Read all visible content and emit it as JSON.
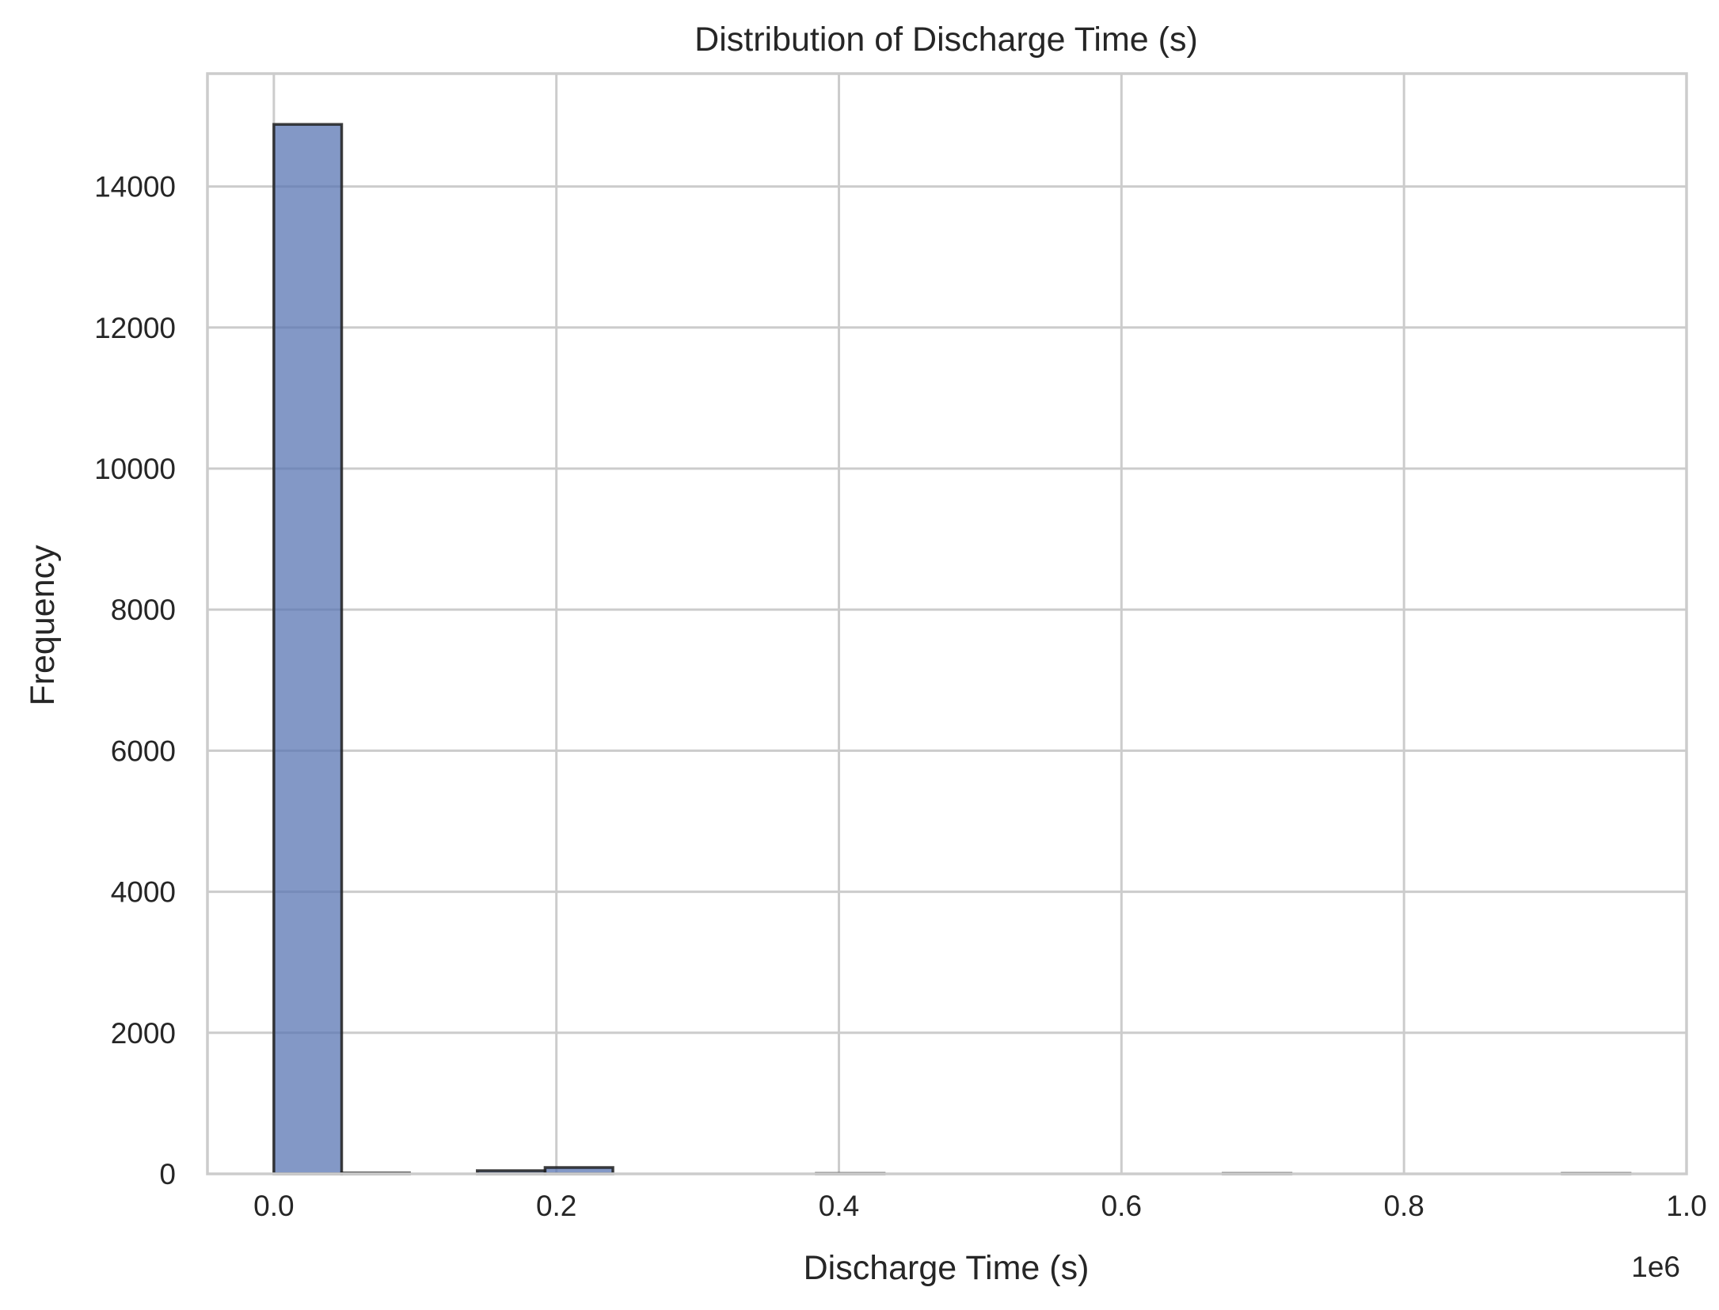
{
  "chart_data": {
    "type": "bar",
    "title": "Distribution of Discharge Time (s)",
    "xlabel": "Discharge Time (s)",
    "ylabel": "Frequency",
    "x_offset_label": "1e6",
    "x_ticks": [
      0.0,
      0.2,
      0.4,
      0.6,
      0.8,
      1.0
    ],
    "x_tick_labels": [
      "0.0",
      "0.2",
      "0.4",
      "0.6",
      "0.8",
      "1.0"
    ],
    "y_ticks": [
      0,
      2000,
      4000,
      6000,
      8000,
      10000,
      12000,
      14000
    ],
    "y_tick_labels": [
      "0",
      "2000",
      "4000",
      "6000",
      "8000",
      "10000",
      "12000",
      "14000"
    ],
    "xlim": [
      -0.047,
      1.0
    ],
    "ylim": [
      0,
      15600
    ],
    "grid": true,
    "bins": [
      {
        "x0": 0.0,
        "x1": 0.048,
        "count": 14880
      },
      {
        "x0": 0.048,
        "x1": 0.096,
        "count": 12
      },
      {
        "x0": 0.096,
        "x1": 0.144,
        "count": 0
      },
      {
        "x0": 0.144,
        "x1": 0.192,
        "count": 45
      },
      {
        "x0": 0.192,
        "x1": 0.24,
        "count": 90
      },
      {
        "x0": 0.24,
        "x1": 0.288,
        "count": 0
      },
      {
        "x0": 0.288,
        "x1": 0.336,
        "count": 0
      },
      {
        "x0": 0.336,
        "x1": 0.384,
        "count": 0
      },
      {
        "x0": 0.384,
        "x1": 0.432,
        "count": 6
      },
      {
        "x0": 0.432,
        "x1": 0.48,
        "count": 0
      },
      {
        "x0": 0.48,
        "x1": 0.528,
        "count": 0
      },
      {
        "x0": 0.528,
        "x1": 0.576,
        "count": 0
      },
      {
        "x0": 0.576,
        "x1": 0.624,
        "count": 0
      },
      {
        "x0": 0.624,
        "x1": 0.672,
        "count": 0
      },
      {
        "x0": 0.672,
        "x1": 0.72,
        "count": 6
      },
      {
        "x0": 0.72,
        "x1": 0.768,
        "count": 0
      },
      {
        "x0": 0.768,
        "x1": 0.816,
        "count": 0
      },
      {
        "x0": 0.816,
        "x1": 0.864,
        "count": 0
      },
      {
        "x0": 0.864,
        "x1": 0.912,
        "count": 0
      },
      {
        "x0": 0.912,
        "x1": 0.96,
        "count": 6
      }
    ],
    "colors": {
      "bar_fill": "#5975b3",
      "bar_fill_opacity": "0.75",
      "bar_edge": "#1f1f1f",
      "grid": "#cccccc",
      "spine": "#cccccc"
    }
  }
}
